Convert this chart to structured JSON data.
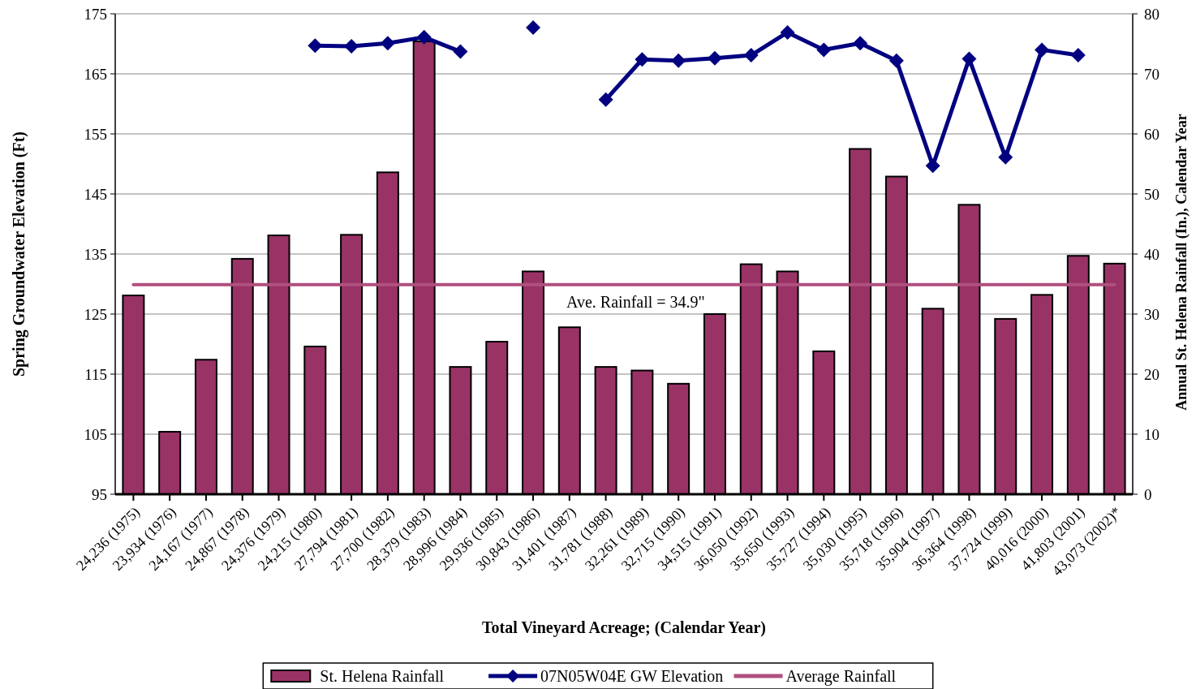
{
  "chart_data": {
    "type": "bar",
    "xlabel": "Total Vineyard Acreage; (Calendar Year)",
    "ylabel": "Spring Groundwater Elevation (Ft)",
    "y2label": "Annual St. Helena Rainfall (In.), Calendar Year",
    "categories": [
      "24,236 (1975)",
      "23,934 (1976)",
      "24,167 (1977)",
      "24,867 (1978)",
      "24,376 (1979)",
      "24,215 (1980)",
      "27,794 (1981)",
      "27,700 (1982)",
      "28,379 (1983)",
      "28,996 (1984)",
      "29,936 (1985)",
      "30,843 (1986)",
      "31,401 (1987)",
      "31,781 (1988)",
      "32,261 (1989)",
      "32,715 (1990)",
      "34,515 (1991)",
      "36,050 (1992)",
      "35,650 (1993)",
      "35,727 (1994)",
      "35,030 (1995)",
      "35,718 (1996)",
      "35,904 (1997)",
      "36,364 (1998)",
      "37,724 (1999)",
      "40,016 (2000)",
      "41,803 (2001)",
      "43,073 (2002)*"
    ],
    "series": [
      {
        "name": "St. Helena Rainfall",
        "axis": "y2",
        "color": "#993366",
        "values": [
          33.1,
          10.4,
          22.4,
          39.2,
          43.1,
          24.6,
          43.2,
          53.6,
          75.4,
          21.2,
          25.4,
          37.1,
          27.8,
          21.2,
          20.6,
          18.4,
          30.0,
          38.3,
          37.1,
          23.8,
          57.5,
          52.9,
          30.9,
          48.2,
          29.2,
          33.2,
          39.7,
          38.4
        ]
      },
      {
        "name": "07N05W04E GW Elevation",
        "type": "line",
        "axis": "y",
        "color": "#000080",
        "marker": "diamond",
        "values": [
          null,
          null,
          null,
          null,
          null,
          169.7,
          169.6,
          170.1,
          171.1,
          168.7,
          null,
          172.7,
          null,
          160.7,
          167.4,
          167.2,
          167.6,
          168.1,
          171.9,
          169.0,
          170.1,
          167.2,
          149.7,
          167.5,
          151.1,
          169.0,
          168.1,
          null
        ]
      },
      {
        "name": "Average Rainfall",
        "type": "line",
        "axis": "y2",
        "color": "#b0507f",
        "marker": "none",
        "values": [
          34.9,
          34.9,
          34.9,
          34.9,
          34.9,
          34.9,
          34.9,
          34.9,
          34.9,
          34.9,
          34.9,
          34.9,
          34.9,
          34.9,
          34.9,
          34.9,
          34.9,
          34.9,
          34.9,
          34.9,
          34.9,
          34.9,
          34.9,
          34.9,
          34.9,
          34.9,
          34.9,
          34.9
        ]
      }
    ],
    "ylim": [
      95,
      175
    ],
    "yticks": [
      95,
      105,
      115,
      125,
      135,
      145,
      155,
      165,
      175
    ],
    "y2lim": [
      0,
      80
    ],
    "y2ticks": [
      0,
      10,
      20,
      30,
      40,
      50,
      60,
      70,
      80
    ],
    "grid": "y",
    "legend": "bottom",
    "annotations": [
      "Ave. Rainfall = 34.9\""
    ]
  }
}
